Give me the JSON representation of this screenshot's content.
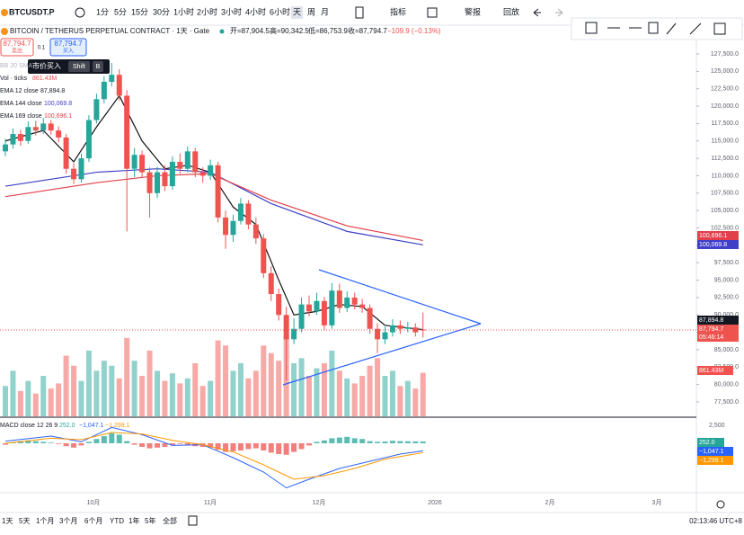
{
  "toolbar": {
    "symbol": "BTCUSDT.P",
    "intervals": [
      "1分",
      "5分",
      "15分",
      "30分",
      "1小时",
      "2小时",
      "3小时",
      "4小时",
      "6小时",
      "天",
      "周",
      "月"
    ],
    "indicators": "指标",
    "alert": "警报",
    "replay": "回放"
  },
  "legend": {
    "title": "BITCOIN / TETHERUS PERPETUAL CONTRACT · 1天 · Gate",
    "open": "开=87,904.5",
    "high": "高=90,342.5",
    "low": "低=86,753.9",
    "close": "收=87,794.7",
    "change": "−109.9 (−0.13%)",
    "sell_price": "87,794.7",
    "sell": "卖出",
    "qty": "0.1",
    "buy_price": "87,794.7",
    "buy": "买入",
    "tooltip": "市价买入",
    "tooltip_key1": "Shift",
    "tooltip_key2": "B",
    "bb": "BB 20 SMA",
    "vol": "Vol · ticks",
    "vol_value": "861.43M",
    "ema12": "EMA 12 close",
    "ema12_value": "87,894.8",
    "ema144": "EMA 144 close",
    "ema144_value": "100,069.8",
    "ema169": "EMA 169 close",
    "ema169_value": "100,696.1",
    "countdown": "05:46:14"
  },
  "macd_legend": {
    "title": "MACD close 12 26 9",
    "hist": "252.0",
    "macd": "−1,047.1",
    "signal": "−1,299.1",
    "axis_label": "2,500"
  },
  "x_labels": [
    "10月",
    "11月",
    "12月",
    "2026",
    "2月",
    "3月"
  ],
  "bottom_bar": {
    "ranges": [
      "1天",
      "5天",
      "1个月",
      "3个月",
      "6个月",
      "YTD",
      "1年",
      "5年",
      "全部"
    ],
    "time": "02:13:46 UTC+8"
  },
  "chart_data": {
    "type": "candlestick",
    "up_color": "#26a69a",
    "down_color": "#ef5350",
    "ylim": [
      77500,
      127500
    ],
    "yticks": [
      {
        "value": 77500,
        "label": "77,500.0"
      },
      {
        "value": 80000,
        "label": "80,000.0"
      },
      {
        "value": 82500,
        "label": "82,500.0"
      },
      {
        "value": 85000,
        "label": "85,000.0"
      },
      {
        "value": 87500,
        "label": "87,500.0"
      },
      {
        "value": 90000,
        "label": "90,000.0"
      },
      {
        "value": 92500,
        "label": "92,500.0"
      },
      {
        "value": 95000,
        "label": "95,000.0"
      },
      {
        "value": 97500,
        "label": "97,500.0"
      },
      {
        "value": 100000,
        "label": "100,000.0"
      },
      {
        "value": 102500,
        "label": "102,500.0"
      },
      {
        "value": 105000,
        "label": "105,000.0"
      },
      {
        "value": 107500,
        "label": "107,500.0"
      },
      {
        "value": 110000,
        "label": "110,000.0"
      },
      {
        "value": 112500,
        "label": "112,500.0"
      },
      {
        "value": 115000,
        "label": "115,000.0"
      },
      {
        "value": 117500,
        "label": "117,500.0"
      },
      {
        "value": 120000,
        "label": "120,000.0"
      },
      {
        "value": 122500,
        "label": "122,500.0"
      },
      {
        "value": 125000,
        "label": "125,000.0"
      },
      {
        "value": 127500,
        "label": "127,500.0"
      }
    ],
    "candles": [
      [
        113500,
        115300,
        112800,
        114500
      ],
      [
        114500,
        116800,
        113900,
        116000
      ],
      [
        116000,
        116600,
        114300,
        115000
      ],
      [
        115000,
        117800,
        114600,
        117000
      ],
      [
        117000,
        117900,
        115800,
        116500
      ],
      [
        116500,
        118300,
        116000,
        117500
      ],
      [
        117500,
        118000,
        115900,
        116500
      ],
      [
        116500,
        117100,
        114800,
        115500
      ],
      [
        115500,
        116000,
        110300,
        111000
      ],
      [
        111000,
        111800,
        108800,
        109500
      ],
      [
        109500,
        113200,
        109000,
        112500
      ],
      [
        112500,
        118700,
        112000,
        118000
      ],
      [
        118000,
        121800,
        117500,
        121000
      ],
      [
        121000,
        124300,
        120400,
        123500
      ],
      [
        123500,
        126200,
        122800,
        124500
      ],
      [
        124500,
        125300,
        120800,
        121500
      ],
      [
        121500,
        122300,
        102000,
        111000
      ],
      [
        111000,
        114000,
        109800,
        113000
      ],
      [
        113000,
        113600,
        109800,
        110500
      ],
      [
        110500,
        111200,
        104000,
        107500
      ],
      [
        107500,
        111300,
        106800,
        110500
      ],
      [
        110500,
        111500,
        107800,
        108500
      ],
      [
        108500,
        112800,
        108000,
        112000
      ],
      [
        112000,
        113200,
        110300,
        111000
      ],
      [
        111000,
        114200,
        110500,
        113500
      ],
      [
        113500,
        114000,
        109800,
        110500
      ],
      [
        110500,
        111200,
        109000,
        110000
      ],
      [
        110000,
        112300,
        109400,
        111500
      ],
      [
        111500,
        112000,
        103300,
        104000
      ],
      [
        104000,
        105000,
        99500,
        101500
      ],
      [
        101500,
        104400,
        100500,
        103500
      ],
      [
        103500,
        106800,
        103000,
        106000
      ],
      [
        106000,
        106500,
        102300,
        103000
      ],
      [
        103000,
        104000,
        100200,
        101000
      ],
      [
        101000,
        101600,
        95300,
        96000
      ],
      [
        96000,
        97000,
        92000,
        93000
      ],
      [
        93000,
        93800,
        89200,
        90000
      ],
      [
        90000,
        91200,
        80600,
        86500
      ],
      [
        86500,
        89500,
        85800,
        88000
      ],
      [
        88000,
        92500,
        87500,
        91500
      ],
      [
        91500,
        92800,
        89800,
        90500
      ],
      [
        90500,
        93200,
        90000,
        92000
      ],
      [
        92000,
        92600,
        87800,
        88500
      ],
      [
        88500,
        94600,
        88000,
        93500
      ],
      [
        93500,
        94500,
        90300,
        91000
      ],
      [
        91000,
        93400,
        90400,
        92500
      ],
      [
        92500,
        93200,
        90800,
        91500
      ],
      [
        91500,
        92300,
        90300,
        91000
      ],
      [
        91000,
        91500,
        87300,
        88000
      ],
      [
        88000,
        88800,
        84500,
        86500
      ],
      [
        86500,
        88300,
        85800,
        87500
      ],
      [
        87500,
        89400,
        86900,
        88500
      ],
      [
        88500,
        89200,
        87300,
        88000
      ],
      [
        88000,
        89000,
        87500,
        88200
      ],
      [
        88200,
        88800,
        86900,
        87500
      ],
      [
        87904.5,
        90342.5,
        86753.9,
        87794.7
      ]
    ],
    "volume_ylim": [
      0,
      1600
    ],
    "volume": [
      600,
      900,
      500,
      700,
      450,
      800,
      550,
      650,
      1200,
      1000,
      700,
      1300,
      900,
      1100,
      1000,
      750,
      1550,
      1100,
      800,
      1300,
      900,
      700,
      850,
      650,
      750,
      1050,
      600,
      700,
      1500,
      1400,
      900,
      1050,
      750,
      900,
      1400,
      1250,
      1100,
      1580,
      1050,
      1150,
      800,
      950,
      1050,
      1300,
      900,
      750,
      650,
      800,
      1000,
      1150,
      800,
      900,
      600,
      700,
      550,
      861.43
    ],
    "lines": [
      {
        "name": "EMA 12",
        "color": "#111111",
        "x": [
          0,
          5,
          9,
          12,
          15,
          18,
          21,
          24,
          27,
          30,
          33,
          36,
          38,
          41,
          44,
          47,
          50,
          55
        ],
        "values": [
          115000,
          116500,
          112000,
          117000,
          121500,
          115000,
          111000,
          111500,
          110500,
          105500,
          103000,
          95000,
          90000,
          90500,
          91500,
          91200,
          88500,
          87894.8
        ]
      },
      {
        "name": "EMA 144",
        "color": "#3f3fc8",
        "x": [
          0,
          12,
          20,
          27,
          35,
          45,
          55
        ],
        "values": [
          108500,
          110500,
          111000,
          110500,
          106000,
          102000,
          100069.8
        ]
      },
      {
        "name": "EMA 169",
        "color": "#e0404a",
        "x": [
          0,
          12,
          20,
          27,
          35,
          45,
          55
        ],
        "values": [
          107000,
          109000,
          110000,
          110300,
          106500,
          102800,
          100696.1
        ]
      }
    ],
    "macd_ylim": [
      -2500,
      2500
    ],
    "macd_hist": [
      -200,
      100,
      300,
      400,
      300,
      200,
      100,
      -100,
      -400,
      -600,
      -300,
      200,
      600,
      1000,
      1400,
      1200,
      300,
      -200,
      -500,
      -700,
      -600,
      -500,
      -300,
      -100,
      -200,
      -400,
      -500,
      -600,
      -900,
      -1200,
      -1100,
      -1000,
      -800,
      -700,
      -1000,
      -1300,
      -1500,
      -1600,
      -1200,
      -800,
      -300,
      200,
      400,
      700,
      800,
      900,
      700,
      600,
      300,
      200,
      250,
      350,
      300,
      280,
      260,
      252.0
    ],
    "macd_lines": [
      {
        "name": "MACD",
        "color": "#2962ff",
        "x": [
          0,
          6,
          10,
          14,
          18,
          22,
          26,
          30,
          34,
          37,
          40,
          44,
          48,
          52,
          55
        ],
        "values": [
          300,
          1000,
          200,
          2200,
          1200,
          -300,
          -200,
          -2000,
          -4000,
          -6200,
          -5000,
          -3500,
          -2500,
          -1500,
          -1047.1
        ]
      },
      {
        "name": "Signal",
        "color": "#ff9800",
        "x": [
          0,
          6,
          10,
          14,
          18,
          22,
          26,
          30,
          34,
          38,
          42,
          46,
          50,
          55
        ],
        "values": [
          0,
          700,
          500,
          1500,
          1300,
          400,
          -200,
          -1200,
          -3000,
          -5000,
          -4500,
          -3500,
          -2200,
          -1299.1
        ]
      }
    ]
  }
}
